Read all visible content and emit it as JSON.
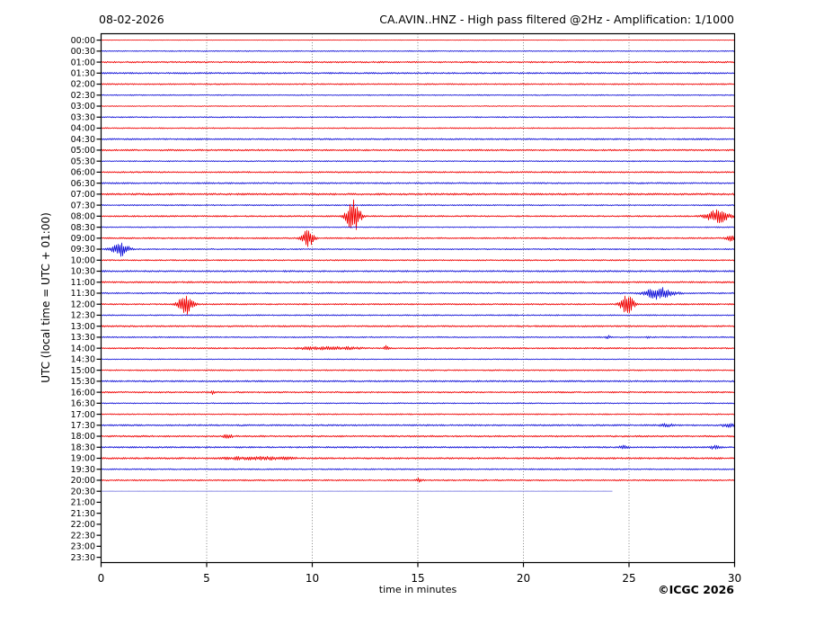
{
  "chart_data": {
    "type": "line",
    "subtype": "helicorder-seismogram",
    "date_label": "08-02-2026",
    "title": "CA.AVIN..HNZ - High pass filtered @2Hz - Amplification: 1/1000",
    "xlabel": "time in minutes",
    "ylabel": "UTC (local time = UTC + 01:00)",
    "copyright": "©ICGC 2026",
    "xlim": [
      0,
      30
    ],
    "x_ticks": [
      0,
      5,
      10,
      15,
      20,
      25,
      30
    ],
    "grid_minutes": [
      5,
      10,
      15,
      20,
      25
    ],
    "grid_style": "dotted-vertical",
    "minutes_per_row": 30,
    "colors": {
      "red_trace": "#f00000",
      "blue_trace": "#1010d8",
      "gap_trace": "#9a9ae8",
      "grid": "#777777",
      "axis": "#000000",
      "text": "#000000",
      "background": "#ffffff"
    },
    "rows": [
      {
        "label": "00:00",
        "amp": 0.3
      },
      {
        "label": "00:30",
        "amp": 0.55
      },
      {
        "label": "01:00",
        "amp": 0.85
      },
      {
        "label": "01:30",
        "amp": 0.85
      },
      {
        "label": "02:00",
        "amp": 0.75
      },
      {
        "label": "02:30",
        "amp": 0.55
      },
      {
        "label": "03:00",
        "amp": 0.5
      },
      {
        "label": "03:30",
        "amp": 0.6
      },
      {
        "label": "04:00",
        "amp": 0.65
      },
      {
        "label": "04:30",
        "amp": 0.85
      },
      {
        "label": "05:00",
        "amp": 0.9
      },
      {
        "label": "05:30",
        "amp": 0.6
      },
      {
        "label": "06:00",
        "amp": 0.8
      },
      {
        "label": "06:30",
        "amp": 0.85
      },
      {
        "label": "07:00",
        "amp": 1.05
      },
      {
        "label": "07:30",
        "amp": 0.7
      },
      {
        "label": "08:00",
        "amp": 0.8
      },
      {
        "label": "08:30",
        "amp": 0.6
      },
      {
        "label": "09:00",
        "amp": 0.8
      },
      {
        "label": "09:30",
        "amp": 0.7
      },
      {
        "label": "10:00",
        "amp": 0.7
      },
      {
        "label": "10:30",
        "amp": 0.9
      },
      {
        "label": "11:00",
        "amp": 0.95
      },
      {
        "label": "11:30",
        "amp": 0.8
      },
      {
        "label": "12:00",
        "amp": 0.8
      },
      {
        "label": "12:30",
        "amp": 0.7
      },
      {
        "label": "13:00",
        "amp": 0.9
      },
      {
        "label": "13:30",
        "amp": 0.7
      },
      {
        "label": "14:00",
        "amp": 0.8
      },
      {
        "label": "14:30",
        "amp": 0.5
      },
      {
        "label": "15:00",
        "amp": 0.7
      },
      {
        "label": "15:30",
        "amp": 0.9
      },
      {
        "label": "16:00",
        "amp": 0.8
      },
      {
        "label": "16:30",
        "amp": 0.6
      },
      {
        "label": "17:00",
        "amp": 0.7
      },
      {
        "label": "17:30",
        "amp": 0.9
      },
      {
        "label": "18:00",
        "amp": 0.9
      },
      {
        "label": "18:30",
        "amp": 0.9
      },
      {
        "label": "19:00",
        "amp": 0.95
      },
      {
        "label": "19:30",
        "amp": 0.7
      },
      {
        "label": "20:00",
        "amp": 0.8
      },
      {
        "label": "20:30",
        "amp": 0.06,
        "end_minute": 24.2,
        "color_key": "gap_trace"
      },
      {
        "label": "21:00",
        "missing": true
      },
      {
        "label": "21:30",
        "missing": true
      },
      {
        "label": "22:00",
        "missing": true
      },
      {
        "label": "22:30",
        "missing": true
      },
      {
        "label": "23:00",
        "missing": true
      },
      {
        "label": "23:30",
        "missing": true
      }
    ],
    "events": [
      {
        "row": "08:00",
        "minute": 11.95,
        "peak": 20.0,
        "dur": 0.3,
        "shape": "spike"
      },
      {
        "row": "08:00",
        "minute": 29.2,
        "peak": 7.0,
        "dur": 0.55,
        "shape": "spindle"
      },
      {
        "row": "09:00",
        "minute": 9.8,
        "peak": 9.0,
        "dur": 0.28,
        "shape": "spike"
      },
      {
        "row": "09:00",
        "minute": 29.85,
        "peak": 3.2,
        "dur": 0.22,
        "shape": "spike"
      },
      {
        "row": "09:30",
        "minute": 0.9,
        "peak": 8.0,
        "dur": 0.4,
        "shape": "spike"
      },
      {
        "row": "11:30",
        "minute": 26.4,
        "peak": 6.5,
        "dur": 0.65,
        "shape": "spindle"
      },
      {
        "row": "12:00",
        "minute": 4.0,
        "peak": 14.0,
        "dur": 0.3,
        "shape": "spike"
      },
      {
        "row": "12:00",
        "minute": 24.9,
        "peak": 11.0,
        "dur": 0.3,
        "shape": "spike"
      },
      {
        "row": "13:30",
        "minute": 24.0,
        "peak": 1.8,
        "dur": 0.1,
        "shape": "spike"
      },
      {
        "row": "13:30",
        "minute": 25.9,
        "peak": 1.2,
        "dur": 0.08,
        "shape": "spike"
      },
      {
        "row": "14:00",
        "minute": 10.8,
        "peak": 1.2,
        "dur": 1.5,
        "shape": "band"
      },
      {
        "row": "14:00",
        "minute": 13.5,
        "peak": 2.6,
        "dur": 0.1,
        "shape": "spike"
      },
      {
        "row": "16:00",
        "minute": 5.3,
        "peak": 2.2,
        "dur": 0.08,
        "shape": "spike"
      },
      {
        "row": "17:30",
        "minute": 26.8,
        "peak": 1.3,
        "dur": 0.35,
        "shape": "band"
      },
      {
        "row": "17:30",
        "minute": 29.7,
        "peak": 1.6,
        "dur": 0.3,
        "shape": "band"
      },
      {
        "row": "18:00",
        "minute": 6.0,
        "peak": 1.4,
        "dur": 0.22,
        "shape": "band"
      },
      {
        "row": "18:30",
        "minute": 24.8,
        "peak": 1.5,
        "dur": 0.25,
        "shape": "band"
      },
      {
        "row": "18:30",
        "minute": 29.1,
        "peak": 1.5,
        "dur": 0.25,
        "shape": "band"
      },
      {
        "row": "19:00",
        "minute": 7.5,
        "peak": 1.2,
        "dur": 1.7,
        "shape": "band"
      },
      {
        "row": "20:00",
        "minute": 15.05,
        "peak": 2.0,
        "dur": 0.15,
        "shape": "spike"
      }
    ]
  }
}
